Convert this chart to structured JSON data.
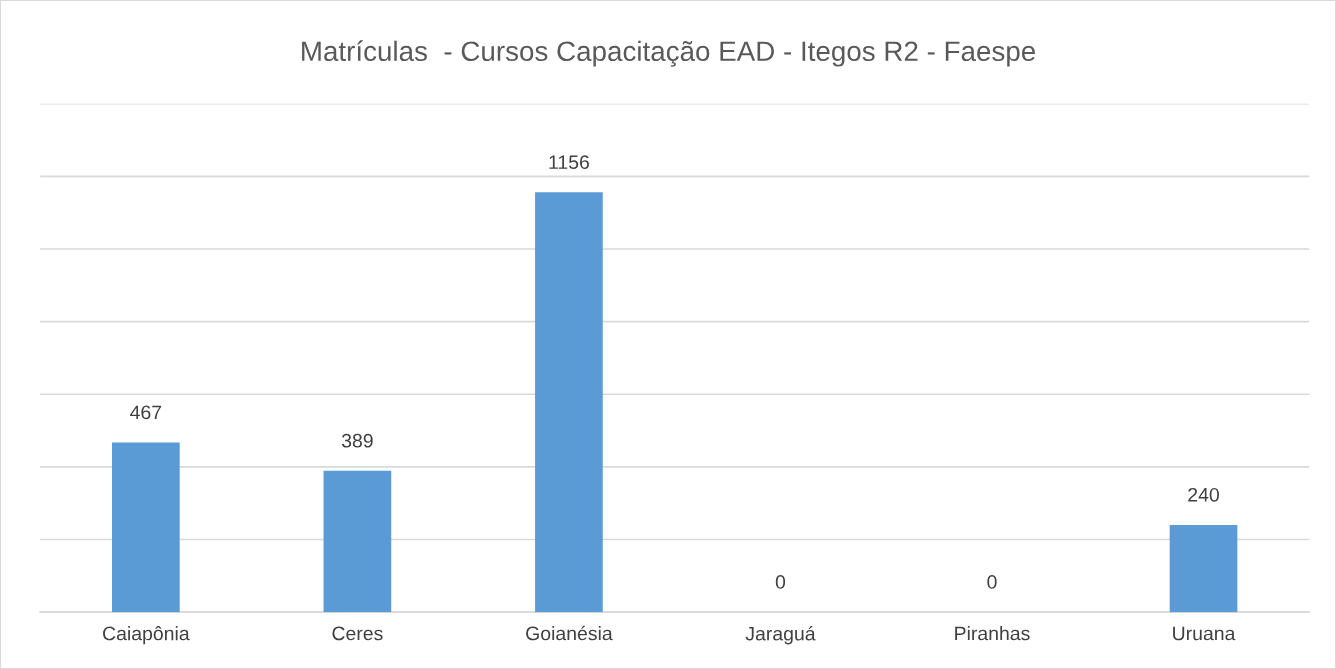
{
  "chart_data": {
    "type": "bar",
    "title": "Matrículas  - Cursos Capacitação EAD - Itegos R2 - Faespe",
    "categories": [
      "Caiapônia",
      "Ceres",
      "Goianésia",
      "Jaraguá",
      "Piranhas",
      "Uruana"
    ],
    "values": [
      467,
      389,
      1156,
      0,
      0,
      240
    ],
    "color": "#5b9bd5",
    "ylim": [
      0,
      1400
    ],
    "yticks": [
      {
        "value": 0,
        "label": null
      },
      {
        "value": 200,
        "label": null
      },
      {
        "value": 400,
        "label": null
      },
      {
        "value": 600,
        "label": null
      },
      {
        "value": 800,
        "label": null
      },
      {
        "value": 1000,
        "label": null
      },
      {
        "value": 1200,
        "label": null
      },
      {
        "value": 1400,
        "label": null
      }
    ],
    "tick_labels": "x",
    "grid": "y",
    "data_labels": true
  }
}
